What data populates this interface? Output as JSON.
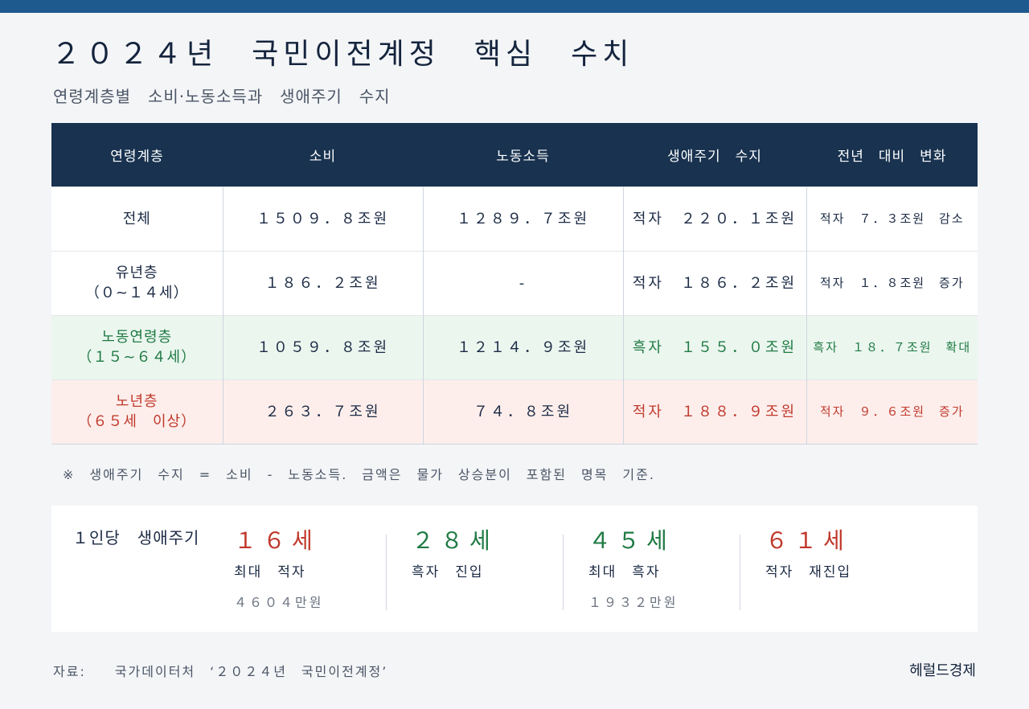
{
  "title": "２０２４년　국민이전계정　핵심　수치",
  "subtitle": "연령계층별　소비·노동소득과　생애주기　수지",
  "colors": {
    "header_bg": "#18324f",
    "deficit": "#c0392b",
    "surplus": "#1f7a43",
    "top_bar": "#1f5a8f"
  },
  "table": {
    "headers": [
      "연령계층",
      "소비",
      "노동소득",
      "생애주기　수지",
      "전년　대비　변화"
    ],
    "rows": [
      {
        "group": "전체",
        "range": "",
        "consumption": "１５０９．８조원",
        "labor_income": "１２８９．７조원",
        "lifecycle_balance": "적자　２２０．１조원",
        "change": "적자　７．３조원　감소"
      },
      {
        "group": "유년층",
        "range": "（０~１４세）",
        "consumption": "１８６．２조원",
        "labor_income": "-",
        "lifecycle_balance": "적자　１８６．２조원",
        "change": "적자　１．８조원　증가"
      },
      {
        "group": "노동연령층",
        "range": "（１５~６４세）",
        "consumption": "１０５９．８조원",
        "labor_income": "１２１４．９조원",
        "lifecycle_balance": "흑자　１５５．０조원",
        "change": "흑자　１８．７조원　확대"
      },
      {
        "group": "노년층",
        "range": "（６５세　이상）",
        "consumption": "２６３．７조원",
        "labor_income": "７４．８조원",
        "lifecycle_balance": "적자　１８８．９조원",
        "change": "적자　９．６조원　증가"
      }
    ]
  },
  "note": "※　생애주기　수지　=　소비　-　노동소득.　금액은　물가　상승분이　포함된　명목　기준.",
  "per_capita": {
    "label": "１인당　생애주기",
    "stats": [
      {
        "age": "１６세",
        "desc": "최대　적자",
        "amount": "４６０４만원",
        "color": "#c0392b"
      },
      {
        "age": "２８세",
        "desc": "흑자　진입",
        "amount": "",
        "color": "#1f7a43"
      },
      {
        "age": "４５세",
        "desc": "최대　흑자",
        "amount": "１９３２만원",
        "color": "#1f7a43"
      },
      {
        "age": "６１세",
        "desc": "적자　재진입",
        "amount": "",
        "color": "#c0392b"
      }
    ]
  },
  "source": "자료:　　국가데이터처　‘２０２４년　국민이전계정’",
  "brand": "헤럴드경제"
}
